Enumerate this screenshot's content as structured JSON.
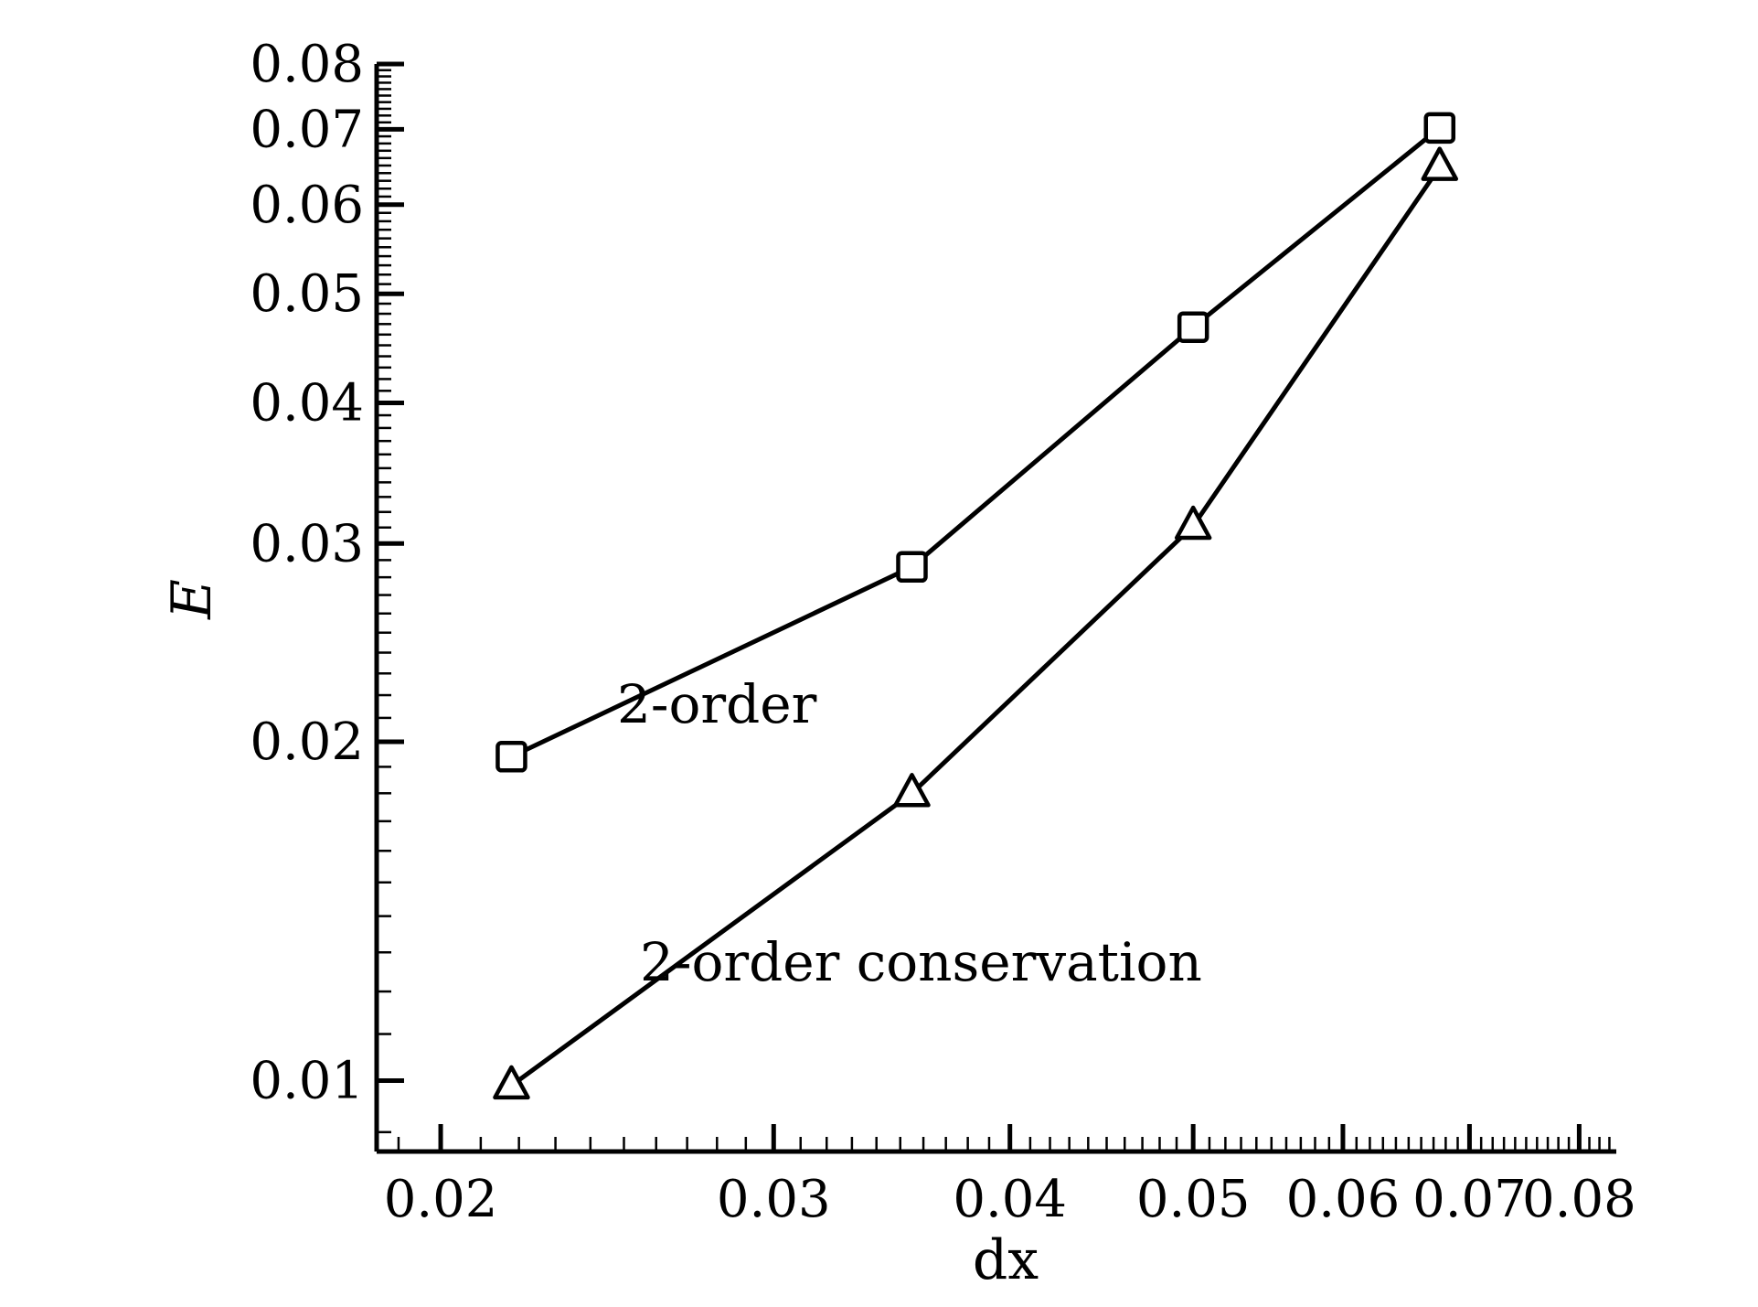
{
  "chart_data": {
    "type": "line",
    "xlabel": "dx",
    "ylabel": "E",
    "xscale": "log",
    "yscale": "log",
    "xlim": [
      0.0185,
      0.0837
    ],
    "ylim": [
      0.00865,
      0.08
    ],
    "x_ticks": [
      "0.02",
      "0.03",
      "0.04",
      "0.05",
      "0.06",
      "0.07",
      "0.08"
    ],
    "y_ticks": [
      "0.01",
      "0.02",
      "0.03",
      "0.04",
      "0.05",
      "0.06",
      "0.07",
      "0.08"
    ],
    "grid": false,
    "legend": "none",
    "series": [
      {
        "name": "2-order",
        "marker": "square",
        "x": [
          0.0218,
          0.0355,
          0.05,
          0.0675
        ],
        "y": [
          0.0194,
          0.0286,
          0.0467,
          0.0702
        ]
      },
      {
        "name": "2-order conservation",
        "marker": "triangle",
        "x": [
          0.0218,
          0.0355,
          0.05,
          0.0675
        ],
        "y": [
          0.0099,
          0.018,
          0.0311,
          0.0648
        ]
      }
    ],
    "annotations": [
      {
        "text": "2-order",
        "series": "2-order"
      },
      {
        "text": "2-order conservation",
        "series": "2-order conservation"
      }
    ],
    "colors": {
      "line": "#000000",
      "background": "#ffffff"
    }
  }
}
